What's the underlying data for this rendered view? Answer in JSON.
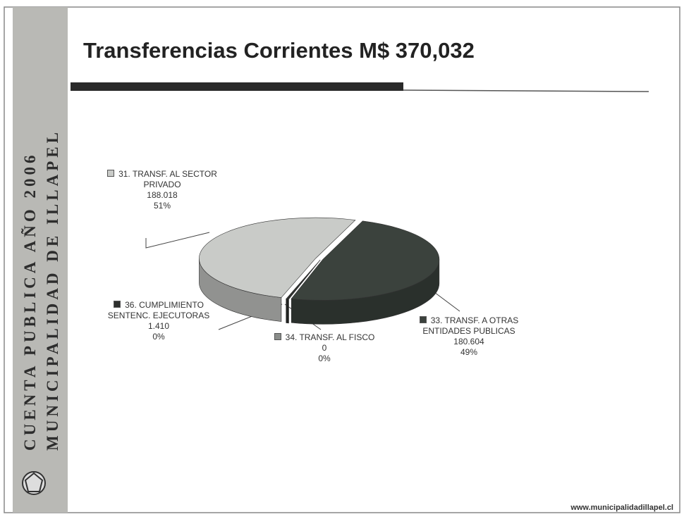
{
  "sidebar": {
    "line1": "CUENTA PUBLICA AÑO 2006",
    "line2": "MUNICIPALIDAD DE ILLAPEL"
  },
  "footer": "www.municipalidadillapel.cl",
  "chart_data": {
    "type": "pie",
    "title": "Transferencias Corrientes M$ 370,032",
    "categories": [
      "31. TRANSF. AL SECTOR PRIVADO",
      "33. TRANSF. A OTRAS ENTIDADES PUBLICAS",
      "34. TRANSF. AL FISCO",
      "36. CUMPLIMIENTO SENTENC. EJECUTORAS"
    ],
    "values": [
      188018,
      180604,
      0,
      1410
    ],
    "value_labels": [
      "188.018",
      "180.604",
      "0",
      "1.410"
    ],
    "percent_labels": [
      "51%",
      "49%",
      "0%",
      "0%"
    ],
    "colors": [
      "#c9cbc8",
      "#3b423d",
      "#8a8d8a",
      "#2e302e"
    ]
  }
}
